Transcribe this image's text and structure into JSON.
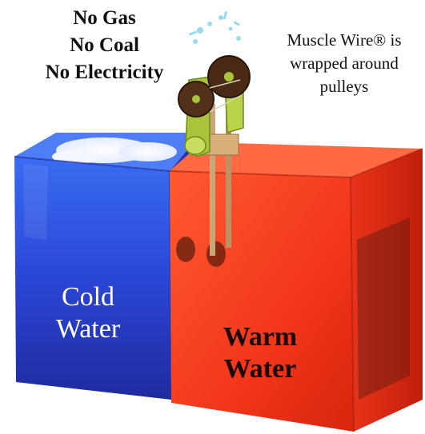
{
  "headline": {
    "line1": "No Gas",
    "line2": "No Coal",
    "line3": "No Electricity"
  },
  "caption": {
    "line1": "Muscle Wire® is",
    "line2": "wrapped around",
    "line3": "pulleys"
  },
  "cold_tank": {
    "line1": "Cold",
    "line2": "Water",
    "color": "#2f4fe0"
  },
  "warm_tank": {
    "line1": "Warm",
    "line2": "Water",
    "color": "#f03a1c"
  },
  "engine": {
    "frame_color": "#a9c43a",
    "pulley_color": "#4a2a14"
  }
}
